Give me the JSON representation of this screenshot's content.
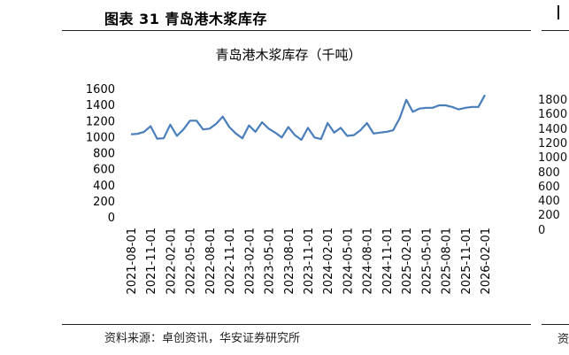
{
  "header": {
    "figure_title": "图表 31 青岛港木浆库存"
  },
  "footer": {
    "source": "资料来源：卓创资讯，华安证券研究所"
  },
  "right_fragment": {
    "y_ticks": [
      "1800",
      "1600",
      "1400",
      "1200",
      "1000",
      "800",
      "600",
      "400",
      "200",
      "0"
    ],
    "source_start": "资"
  },
  "chart_data": {
    "type": "line",
    "title": "青岛港木浆库存（千吨）",
    "ylim": [
      0,
      1600
    ],
    "yticks": [
      0,
      200,
      400,
      600,
      800,
      1000,
      1200,
      1400,
      1600
    ],
    "xtick_labels": [
      "2021-08-01",
      "2021-11-01",
      "2022-02-01",
      "2022-05-01",
      "2022-08-01",
      "2022-11-01",
      "2023-02-01",
      "2023-05-01",
      "2023-08-01",
      "2023-11-01",
      "2024-02-01",
      "2024-05-01",
      "2024-08-01",
      "2024-11-01",
      "2025-02-01",
      "2025-05-01",
      "2025-08-01",
      "2025-11-01",
      "2026-02-01"
    ],
    "grid": false,
    "legend": "none",
    "color": "#4a7ebb",
    "series": [
      {
        "x": [
          "2021-08-01",
          "2021-09-01",
          "2021-10-01",
          "2021-11-01",
          "2021-12-01",
          "2022-01-01",
          "2022-02-01",
          "2022-03-01",
          "2022-04-01",
          "2022-05-01",
          "2022-06-01",
          "2022-07-01",
          "2022-08-01",
          "2022-09-01",
          "2022-10-01",
          "2022-11-01",
          "2022-12-01",
          "2023-01-01",
          "2023-02-01",
          "2023-03-01",
          "2023-04-01",
          "2023-05-01",
          "2023-06-01",
          "2023-07-01",
          "2023-08-01",
          "2023-09-01",
          "2023-10-01",
          "2023-11-01",
          "2023-12-01",
          "2024-01-01",
          "2024-02-01",
          "2024-03-01",
          "2024-04-01",
          "2024-05-01",
          "2024-06-01",
          "2024-07-01",
          "2024-08-01",
          "2024-09-01",
          "2024-10-01",
          "2024-11-01",
          "2024-12-01",
          "2025-01-01",
          "2025-02-01",
          "2025-03-01",
          "2025-04-01",
          "2025-05-01",
          "2025-06-01",
          "2025-07-01",
          "2025-08-01",
          "2025-09-01",
          "2025-10-01",
          "2025-11-01",
          "2025-12-01",
          "2026-01-01",
          "2026-02-01"
        ],
        "values": [
          1030,
          1035,
          1060,
          1130,
          975,
          980,
          1150,
          1010,
          1090,
          1200,
          1200,
          1090,
          1100,
          1160,
          1250,
          1120,
          1040,
          980,
          1140,
          1060,
          1180,
          1100,
          1050,
          990,
          1120,
          1020,
          960,
          1110,
          990,
          970,
          1170,
          1050,
          1110,
          1010,
          1020,
          1080,
          1170,
          1040,
          1050,
          1060,
          1080,
          1230,
          1460,
          1310,
          1350,
          1360,
          1360,
          1390,
          1390,
          1370,
          1340,
          1360,
          1370,
          1370,
          1520
        ]
      }
    ]
  }
}
